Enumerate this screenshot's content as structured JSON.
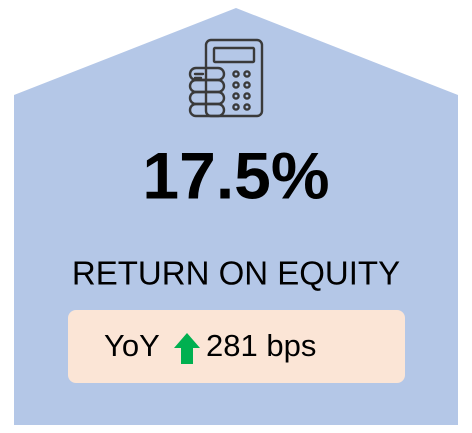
{
  "kpi": {
    "value": "17.5%",
    "label": "RETURN ON EQUITY"
  },
  "change": {
    "prefix": "YoY",
    "value": "281 bps"
  }
}
